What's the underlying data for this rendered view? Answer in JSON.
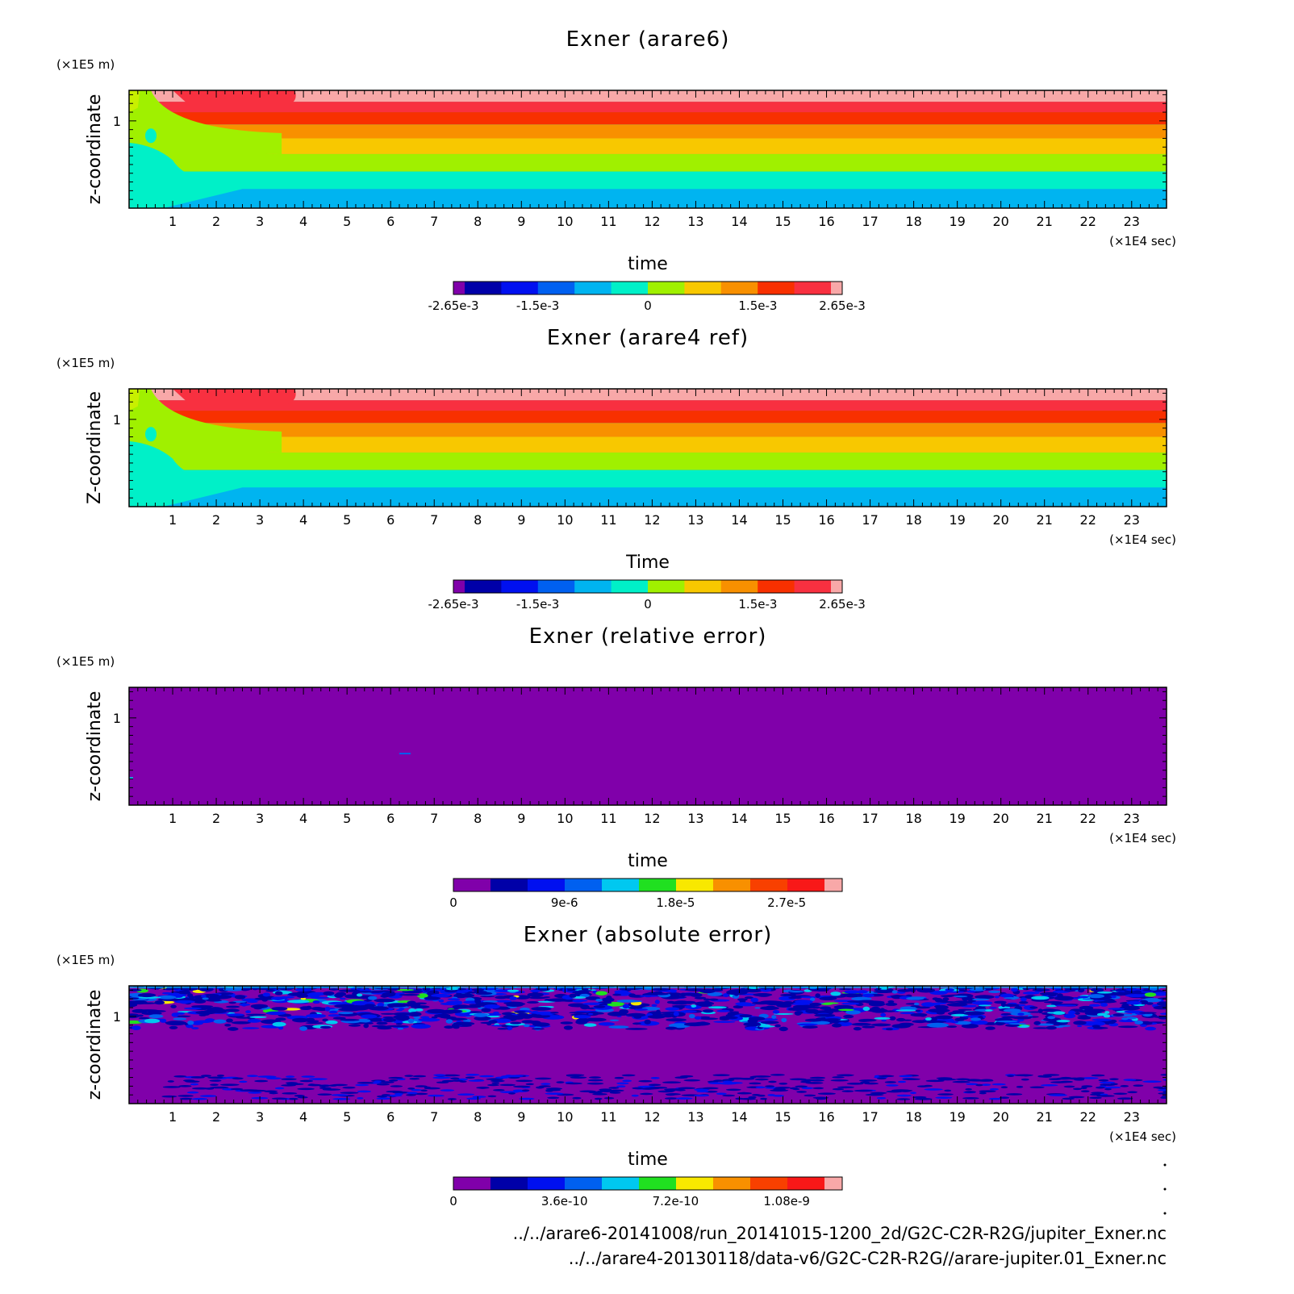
{
  "chart_data": [
    {
      "type": "heatmap",
      "title": "Exner (arare6)",
      "xlabel": "time",
      "ylabel": "z-coordinate",
      "x_unit": "(×1E4 sec)",
      "y_unit": "(×1E5 m)",
      "x_ticks": [
        "1",
        "2",
        "3",
        "4",
        "5",
        "6",
        "7",
        "8",
        "9",
        "10",
        "11",
        "12",
        "13",
        "14",
        "15",
        "16",
        "17",
        "18",
        "19",
        "20",
        "21",
        "22",
        "23"
      ],
      "y_ticks": [
        "1"
      ],
      "xlim": [
        0,
        23.8
      ],
      "ylim": [
        0,
        1.35
      ],
      "pattern": "layered",
      "colorbar": {
        "range": [
          -0.00265,
          0.00265
        ],
        "labels": [
          "-2.65e-3",
          "-1.5e-3",
          "0",
          "1.5e-3",
          "2.65e-3"
        ],
        "label_values": [
          -0.00265,
          -0.0015,
          0,
          0.0015,
          0.00265
        ],
        "colors": [
          "#8000aa",
          "#0000a8",
          "#0010f0",
          "#0060f0",
          "#00b4f0",
          "#00f0c8",
          "#a0f000",
          "#f8c800",
          "#f89000",
          "#f83000",
          "#f83040",
          "#f8a8a8"
        ]
      }
    },
    {
      "type": "heatmap",
      "title": "Exner (arare4 ref)",
      "xlabel": "Time",
      "ylabel": "Z-coordinate",
      "x_unit": "(×1E4 sec)",
      "y_unit": "(×1E5 m)",
      "x_ticks": [
        "1",
        "2",
        "3",
        "4",
        "5",
        "6",
        "7",
        "8",
        "9",
        "10",
        "11",
        "12",
        "13",
        "14",
        "15",
        "16",
        "17",
        "18",
        "19",
        "20",
        "21",
        "22",
        "23"
      ],
      "y_ticks": [
        "1"
      ],
      "xlim": [
        0,
        23.8
      ],
      "ylim": [
        0,
        1.35
      ],
      "pattern": "layered",
      "colorbar": {
        "range": [
          -0.00265,
          0.00265
        ],
        "labels": [
          "-2.65e-3",
          "-1.5e-3",
          "0",
          "1.5e-3",
          "2.65e-3"
        ],
        "label_values": [
          -0.00265,
          -0.0015,
          0,
          0.0015,
          0.00265
        ],
        "colors": [
          "#8000aa",
          "#0000a8",
          "#0010f0",
          "#0060f0",
          "#00b4f0",
          "#00f0c8",
          "#a0f000",
          "#f8c800",
          "#f89000",
          "#f83000",
          "#f83040",
          "#f8a8a8"
        ]
      }
    },
    {
      "type": "heatmap",
      "title": "Exner (relative error)",
      "xlabel": "time",
      "ylabel": "z-coordinate",
      "x_unit": "(×1E4 sec)",
      "y_unit": "(×1E5 m)",
      "x_ticks": [
        "1",
        "2",
        "3",
        "4",
        "5",
        "6",
        "7",
        "8",
        "9",
        "10",
        "11",
        "12",
        "13",
        "14",
        "15",
        "16",
        "17",
        "18",
        "19",
        "20",
        "21",
        "22",
        "23"
      ],
      "y_ticks": [
        "1"
      ],
      "xlim": [
        0,
        23.8
      ],
      "ylim": [
        0,
        1.35
      ],
      "pattern": "flat",
      "colorbar": {
        "range": [
          0,
          3.15e-05
        ],
        "labels": [
          "0",
          "9e-6",
          "1.8e-5",
          "2.7e-5"
        ],
        "label_values": [
          0,
          9e-06,
          1.8e-05,
          2.7e-05
        ],
        "colors": [
          "#8000aa",
          "#0000a8",
          "#0010f0",
          "#0060f0",
          "#00c8f0",
          "#20e020",
          "#f8e800",
          "#f89000",
          "#f84000",
          "#f81818",
          "#f8a8a8"
        ]
      }
    },
    {
      "type": "heatmap",
      "title": "Exner (absolute error)",
      "xlabel": "time",
      "ylabel": "z-coordinate",
      "x_unit": "(×1E4 sec)",
      "y_unit": "(×1E5 m)",
      "x_ticks": [
        "1",
        "2",
        "3",
        "4",
        "5",
        "6",
        "7",
        "8",
        "9",
        "10",
        "11",
        "12",
        "13",
        "14",
        "15",
        "16",
        "17",
        "18",
        "19",
        "20",
        "21",
        "22",
        "23"
      ],
      "y_ticks": [
        "1"
      ],
      "xlim": [
        0,
        23.8
      ],
      "ylim": [
        0,
        1.35
      ],
      "pattern": "noise",
      "colorbar": {
        "range": [
          0,
          1.26e-09
        ],
        "labels": [
          "0",
          "3.6e-10",
          "7.2e-10",
          "1.08e-9"
        ],
        "label_values": [
          0,
          3.6e-10,
          7.2e-10,
          1.08e-09
        ],
        "colors": [
          "#8000aa",
          "#0000a8",
          "#0010f0",
          "#0060f0",
          "#00c8f0",
          "#20e020",
          "#f8e800",
          "#f89000",
          "#f84000",
          "#f81818",
          "#f8a8a8"
        ]
      }
    }
  ],
  "footer": {
    "path1": "../../arare6-20141008/run_20141015-1200_2d/G2C-C2R-R2G/jupiter_Exner.nc",
    "path2": "../../arare4-20130118/data-v6/G2C-C2R-R2G//arare-jupiter.01_Exner.nc"
  }
}
